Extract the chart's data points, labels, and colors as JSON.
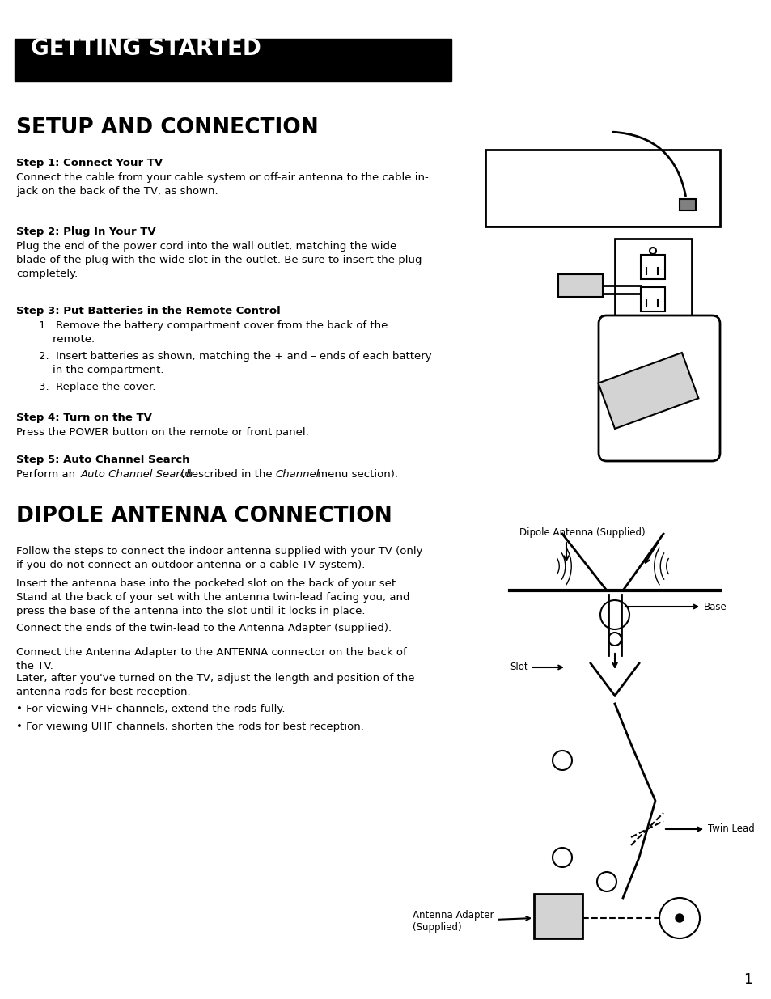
{
  "page_bg": "#ffffff",
  "header_bg": "#000000",
  "header_text": "GETTING STARTED",
  "header_text_color": "#ffffff",
  "section1_title": "SETUP AND CONNECTION",
  "step1_bold": "Step 1: Connect Your TV",
  "step1_text": "Connect the cable from your cable system or off-air antenna to the cable in-\njack on the back of the TV, as shown.",
  "step2_bold": "Step 2: Plug In Your TV",
  "step2_text": "Plug the end of the power cord into the wall outlet, matching the wide\nblade of the plug with the wide slot in the outlet. Be sure to insert the plug\ncompletely.",
  "step3_bold": "Step 3: Put Batteries in the Remote Control",
  "step3_items": [
    "Remove the battery compartment cover from the back of the\n    remote.",
    "Insert batteries as shown, matching the + and – ends of each battery\n    in the compartment.",
    "Replace the cover."
  ],
  "step4_bold": "Step 4: Turn on the TV",
  "step4_text": "Press the POWER button on the remote or front panel.",
  "step5_bold": "Step 5: Auto Channel Search",
  "step5_text": "Perform an Auto Channel Search (described in the Channel menu section).",
  "section2_title": "DIPOLE ANTENNA CONNECTION",
  "dipole_p1": "Follow the steps to connect the indoor antenna supplied with your TV (only\nif you do not connect an outdoor antenna or a cable-TV system).",
  "dipole_p2": "Insert the antenna base into the pocketed slot on the back of your set.\nStand at the back of your set with the antenna twin-lead facing you, and\npress the base of the antenna into the slot until it locks in place.",
  "dipole_p3": "Connect the ends of the twin-lead to the Antenna Adapter (supplied).",
  "dipole_p4": "Connect the Antenna Adapter to the ANTENNA connector on the back of\nthe TV.",
  "dipole_p5": "Later, after you've turned on the TV, adjust the length and position of the\nantenna rods for best reception.",
  "dipole_bullet1": "• For viewing VHF channels, extend the rods fully.",
  "dipole_bullet2": "• For viewing UHF channels, shorten the rods for best reception.",
  "page_number": "1",
  "label_dipole_antenna": "Dipole Antenna (Supplied)",
  "label_base": "Base",
  "label_slot": "Slot",
  "label_twin_lead": "Twin Lead",
  "label_antenna_adapter": "Antenna Adapter\n(Supplied)"
}
